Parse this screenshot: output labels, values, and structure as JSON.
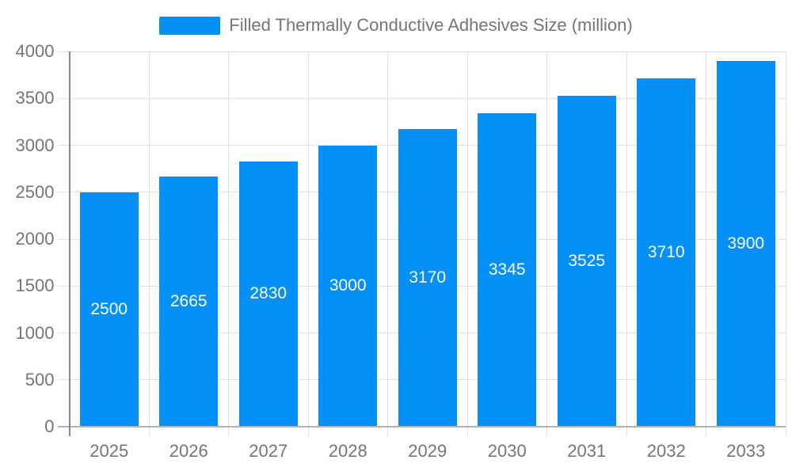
{
  "chart_data": {
    "type": "bar",
    "title": "Filled Thermally Conductive Adhesives Size (million)",
    "categories": [
      "2025",
      "2026",
      "2027",
      "2028",
      "2029",
      "2030",
      "2031",
      "2032",
      "2033"
    ],
    "values": [
      2500,
      2665,
      2830,
      3000,
      3170,
      3345,
      3525,
      3710,
      3900
    ],
    "xlabel": "",
    "ylabel": "",
    "ylim": [
      0,
      4000
    ],
    "yticks": [
      0,
      500,
      1000,
      1500,
      2000,
      2500,
      3000,
      3500,
      4000
    ],
    "grid": true,
    "legend_position": "top",
    "bar_value_labels_inside": true,
    "colors": {
      "bar": "#0590f8",
      "grid": "#e0e0e0",
      "axis": "#888888",
      "baseline": "#b3b3b3",
      "value_label": "#ffffff",
      "axis_text": "#757575"
    }
  }
}
